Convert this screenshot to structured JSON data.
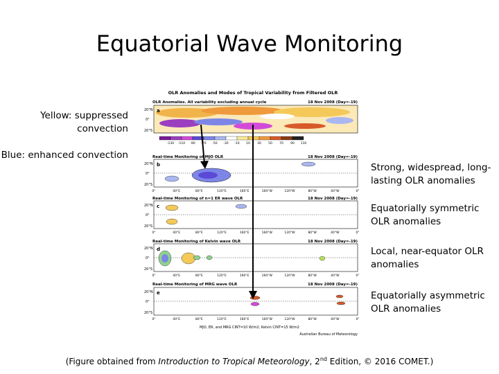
{
  "slide": {
    "title": "Equatorial Wave Monitoring"
  },
  "left_notes": [
    {
      "text": "Yellow: suppressed convection"
    },
    {
      "text": "Blue: enhanced convection"
    }
  ],
  "right_notes": [
    {
      "text": "Strong, widespread, long-lasting OLR anomalies"
    },
    {
      "text": "Equatorially symmetric OLR anomalies"
    },
    {
      "text": "Local, near-equator OLR anomalies"
    },
    {
      "text": "Equatorially asymmetric OLR anomalies"
    }
  ],
  "caption": {
    "prefix": "(Figure obtained from ",
    "book": "Introduction to Tropical Meteorology",
    "edition_num": ", 2",
    "edition_sup": "nd",
    "suffix": " Edition, © 2016 COMET.)"
  },
  "figure": {
    "title": "OLR Anomalies and Modes of Tropical Variability from Filtered OLR",
    "panels": [
      {
        "letter": "a",
        "left_title": "OLR Anomalies.  All variability excluding annual cycle",
        "right_title": "18 Nov 2008 (Day=-19)"
      },
      {
        "letter": "b",
        "left_title": "Real-time Monitoring of MJO OLR",
        "right_title": "18 Nov 2008 (Day=-19)"
      },
      {
        "letter": "c",
        "left_title": "Real-time Monitoring of n=1 ER wave OLR",
        "right_title": "18 Nov 2008 (Day=-19)"
      },
      {
        "letter": "d",
        "left_title": "Real-time Monitoring of Kelvin wave OLR",
        "right_title": "18 Nov 2008 (Day=-19)"
      },
      {
        "letter": "e",
        "left_title": "Real-time Monitoring of MRG wave OLR",
        "right_title": "18 Nov 2008 (Day=-19)"
      }
    ],
    "lat_labels": [
      "20°N",
      "0°",
      "20°S"
    ],
    "lon_labels": [
      "0°",
      "40°E",
      "80°E",
      "120°E",
      "160°E",
      "160°W",
      "120°W",
      "80°W",
      "40°W",
      "0°"
    ],
    "colorbar_ticks": [
      "-130",
      "-110",
      "-90",
      "-70",
      "-50",
      "-30",
      "-10",
      "10",
      "30",
      "50",
      "70",
      "90",
      "110"
    ],
    "colorbar_colors": [
      "#7a1a9a",
      "#9b3fc0",
      "#d24bd8",
      "#5a4ad6",
      "#7d86e6",
      "#aab7f0",
      "#ffffff",
      "#f7ea9c",
      "#f4c95a",
      "#ef9a3c",
      "#d75a2a",
      "#8a3a1a",
      "#222222"
    ],
    "footnote": "MJO, ER, and MRG CINT=10 W/m2; Kelvin CINT=15 W/m2",
    "credit": "Australian Bureau of Meteorology"
  }
}
